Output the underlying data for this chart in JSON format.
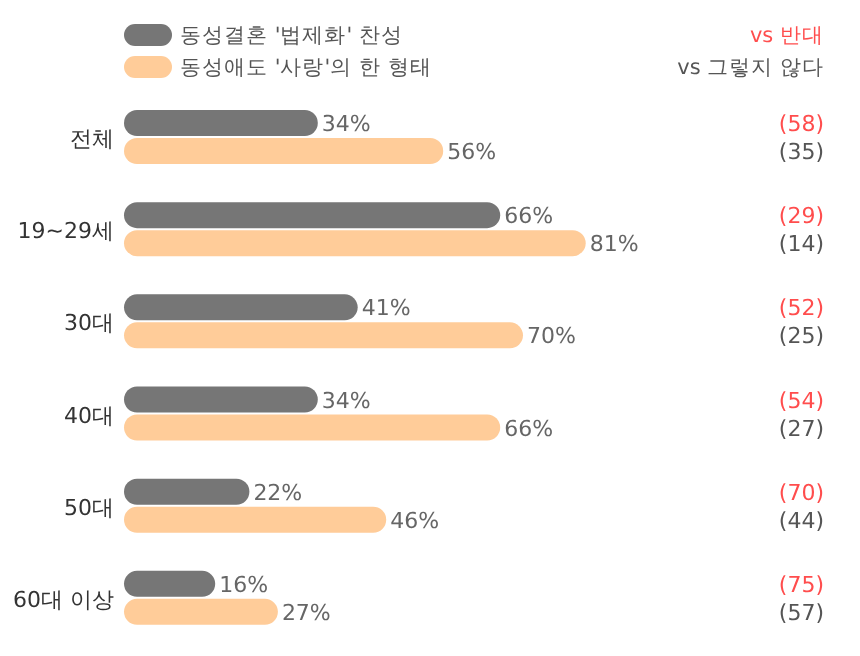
{
  "chart_data": {
    "type": "bar",
    "orientation": "horizontal",
    "categories": [
      "전체",
      "19~29세",
      "30대",
      "40대",
      "50대",
      "60대 이상"
    ],
    "series": [
      {
        "name": "동성결혼 '법제화' 찬성",
        "color": "#767676",
        "values": [
          34,
          66,
          41,
          34,
          22,
          16
        ],
        "value_labels": [
          "34%",
          "66%",
          "41%",
          "34%",
          "22%",
          "16%"
        ]
      },
      {
        "name": "동성애도 '사랑'의 한 형태",
        "color": "#ffcc99",
        "values": [
          56,
          81,
          70,
          66,
          46,
          27
        ],
        "value_labels": [
          "56%",
          "81%",
          "70%",
          "66%",
          "46%",
          "27%"
        ]
      }
    ],
    "tick_labels": "y",
    "legend": "top left",
    "annotations": [
      "vs 반대",
      "vs 그렇지 않다",
      "(58)",
      "(35)",
      "(29)",
      "(14)",
      "(52)",
      "(25)",
      "(54)",
      "(27)",
      "(70)",
      "(44)",
      "(75)",
      "(57)"
    ]
  }
}
